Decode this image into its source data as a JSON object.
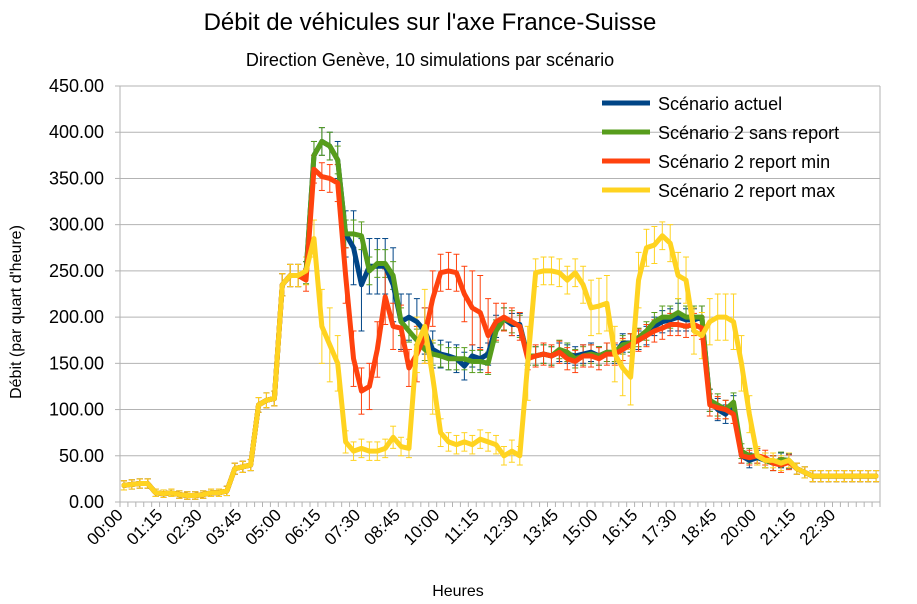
{
  "chart_data": {
    "type": "line",
    "title": "Débit de véhicules sur l'axe France-Suisse",
    "subtitle": "Direction Genève, 10 simulations par scénario",
    "xlabel": "Heures",
    "ylabel": "Débit (par quart d'heure)",
    "ylim": [
      0,
      450
    ],
    "yticks": [
      "0.00",
      "50.00",
      "100.00",
      "150.00",
      "200.00",
      "250.00",
      "300.00",
      "350.00",
      "400.00",
      "450.00"
    ],
    "xtick_labels": [
      "00:00",
      "01:15",
      "02:30",
      "03:45",
      "05:00",
      "06:15",
      "07:30",
      "08:45",
      "10:00",
      "11:15",
      "12:30",
      "13:45",
      "15:00",
      "16:15",
      "17:30",
      "18:45",
      "20:00",
      "21:15",
      "22:30"
    ],
    "x_interval_minutes": 15,
    "points_per_series": 96,
    "grid": "horizontal",
    "legend_position": "top-right",
    "error_bars": true,
    "series": [
      {
        "name": "Scénario actuel",
        "color": "#004586",
        "values": [
          18,
          19,
          20,
          20,
          10,
          9,
          10,
          8,
          7,
          7,
          8,
          10,
          10,
          12,
          36,
          38,
          40,
          105,
          110,
          112,
          235,
          245,
          245,
          248,
          375,
          390,
          385,
          370,
          290,
          275,
          235,
          255,
          255,
          255,
          235,
          195,
          200,
          195,
          185,
          165,
          160,
          158,
          155,
          147,
          158,
          155,
          160,
          190,
          198,
          192,
          192,
          158,
          158,
          160,
          158,
          162,
          160,
          158,
          160,
          162,
          158,
          162,
          160,
          172,
          172,
          175,
          180,
          190,
          195,
          197,
          200,
          197,
          197,
          200,
          110,
          100,
          95,
          105,
          50,
          45,
          48,
          45,
          42,
          45,
          44,
          36,
          32,
          28,
          28,
          28,
          28,
          28,
          28,
          28,
          28,
          28
        ],
        "errors": [
          5,
          5,
          5,
          5,
          4,
          4,
          4,
          4,
          4,
          4,
          4,
          4,
          4,
          5,
          6,
          6,
          6,
          8,
          8,
          8,
          12,
          12,
          12,
          12,
          15,
          15,
          15,
          20,
          25,
          40,
          50,
          30,
          30,
          30,
          40,
          30,
          25,
          25,
          25,
          20,
          15,
          15,
          15,
          15,
          12,
          12,
          12,
          12,
          12,
          12,
          12,
          10,
          10,
          10,
          10,
          10,
          10,
          10,
          10,
          10,
          10,
          10,
          10,
          10,
          10,
          10,
          10,
          10,
          12,
          12,
          15,
          12,
          12,
          12,
          12,
          12,
          10,
          10,
          8,
          8,
          8,
          8,
          8,
          8,
          8,
          6,
          6,
          6,
          6,
          6,
          6,
          6,
          6,
          6,
          6,
          6
        ]
      },
      {
        "name": "Scénario 2 sans report",
        "color": "#579d1c",
        "values": [
          18,
          19,
          20,
          20,
          10,
          9,
          10,
          8,
          7,
          7,
          8,
          10,
          10,
          12,
          36,
          38,
          40,
          105,
          110,
          112,
          235,
          245,
          245,
          248,
          375,
          390,
          385,
          370,
          290,
          290,
          288,
          250,
          258,
          258,
          245,
          195,
          185,
          175,
          165,
          160,
          158,
          155,
          155,
          155,
          152,
          152,
          150,
          185,
          198,
          195,
          190,
          158,
          158,
          160,
          158,
          165,
          162,
          155,
          158,
          160,
          158,
          162,
          162,
          170,
          172,
          178,
          185,
          195,
          200,
          200,
          205,
          200,
          200,
          200,
          110,
          105,
          100,
          108,
          55,
          50,
          50,
          45,
          42,
          46,
          45,
          36,
          32,
          28,
          28,
          28,
          28,
          28,
          28,
          28,
          28,
          28
        ],
        "errors": [
          5,
          5,
          5,
          5,
          4,
          4,
          4,
          4,
          4,
          4,
          4,
          4,
          4,
          5,
          6,
          6,
          6,
          8,
          8,
          8,
          12,
          12,
          12,
          12,
          15,
          15,
          15,
          15,
          15,
          15,
          15,
          15,
          15,
          15,
          15,
          15,
          12,
          12,
          12,
          12,
          12,
          12,
          12,
          12,
          12,
          12,
          12,
          12,
          12,
          12,
          12,
          10,
          10,
          10,
          10,
          10,
          10,
          10,
          10,
          10,
          10,
          10,
          10,
          10,
          10,
          10,
          10,
          10,
          12,
          12,
          15,
          12,
          12,
          12,
          12,
          12,
          10,
          10,
          8,
          8,
          8,
          8,
          8,
          8,
          8,
          6,
          6,
          6,
          6,
          6,
          6,
          6,
          6,
          6,
          6,
          6
        ]
      },
      {
        "name": "Scénario 2 report min",
        "color": "#ff420e",
        "values": [
          18,
          19,
          20,
          20,
          10,
          9,
          10,
          8,
          7,
          7,
          8,
          10,
          10,
          12,
          36,
          38,
          40,
          105,
          110,
          112,
          235,
          245,
          245,
          240,
          360,
          352,
          350,
          345,
          245,
          155,
          120,
          125,
          165,
          222,
          190,
          188,
          145,
          160,
          180,
          220,
          248,
          250,
          248,
          225,
          210,
          205,
          180,
          195,
          200,
          195,
          190,
          155,
          158,
          160,
          158,
          162,
          155,
          152,
          158,
          158,
          155,
          160,
          160,
          165,
          170,
          175,
          180,
          185,
          188,
          192,
          192,
          190,
          192,
          188,
          105,
          102,
          100,
          95,
          50,
          48,
          50,
          48,
          42,
          40,
          43,
          36,
          32,
          28,
          28,
          28,
          28,
          28,
          28,
          28,
          28,
          28
        ],
        "errors": [
          5,
          5,
          5,
          5,
          4,
          4,
          4,
          4,
          4,
          4,
          4,
          4,
          4,
          5,
          6,
          6,
          6,
          8,
          8,
          8,
          12,
          12,
          12,
          12,
          15,
          15,
          15,
          20,
          30,
          30,
          25,
          25,
          30,
          30,
          25,
          25,
          20,
          30,
          30,
          30,
          20,
          20,
          20,
          30,
          40,
          40,
          40,
          20,
          15,
          15,
          15,
          12,
          12,
          12,
          12,
          12,
          12,
          12,
          12,
          12,
          12,
          12,
          12,
          12,
          12,
          12,
          12,
          12,
          12,
          12,
          12,
          12,
          12,
          12,
          12,
          12,
          10,
          10,
          8,
          8,
          8,
          8,
          8,
          8,
          8,
          6,
          6,
          6,
          6,
          6,
          6,
          6,
          6,
          6,
          6,
          6
        ]
      },
      {
        "name": "Scénario 2 report max",
        "color": "#ffd320",
        "values": [
          18,
          19,
          20,
          20,
          10,
          9,
          10,
          8,
          7,
          7,
          8,
          10,
          10,
          12,
          36,
          38,
          40,
          105,
          110,
          112,
          235,
          245,
          245,
          250,
          285,
          190,
          170,
          150,
          65,
          55,
          58,
          55,
          55,
          58,
          70,
          60,
          58,
          170,
          190,
          135,
          75,
          65,
          62,
          65,
          62,
          68,
          65,
          62,
          50,
          55,
          50,
          150,
          248,
          250,
          250,
          248,
          240,
          248,
          235,
          210,
          212,
          215,
          160,
          145,
          135,
          240,
          275,
          278,
          288,
          280,
          245,
          240,
          185,
          180,
          195,
          200,
          200,
          195,
          150,
          95,
          50,
          45,
          45,
          42,
          45,
          36,
          32,
          28,
          28,
          28,
          28,
          28,
          28,
          28,
          28,
          28
        ],
        "errors": [
          5,
          5,
          5,
          5,
          4,
          4,
          4,
          4,
          4,
          4,
          4,
          4,
          4,
          5,
          6,
          6,
          6,
          8,
          8,
          8,
          12,
          12,
          12,
          15,
          20,
          40,
          40,
          30,
          12,
          10,
          10,
          10,
          10,
          10,
          12,
          10,
          10,
          30,
          40,
          40,
          15,
          10,
          10,
          10,
          10,
          10,
          10,
          10,
          10,
          12,
          10,
          40,
          15,
          15,
          15,
          15,
          15,
          15,
          20,
          30,
          30,
          30,
          30,
          30,
          30,
          30,
          20,
          20,
          15,
          20,
          25,
          25,
          25,
          25,
          25,
          25,
          25,
          30,
          30,
          20,
          10,
          8,
          8,
          8,
          8,
          6,
          6,
          6,
          6,
          6,
          6,
          6,
          6,
          6,
          6,
          6
        ]
      }
    ]
  }
}
